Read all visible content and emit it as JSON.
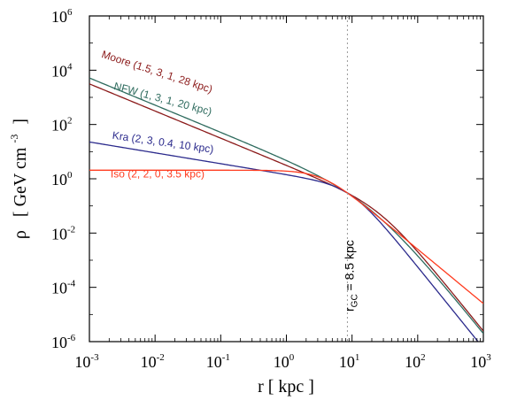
{
  "chart_data": {
    "type": "line",
    "xscale": "log",
    "yscale": "log",
    "xlim": [
      0.001,
      1000
    ],
    "ylim": [
      1e-06,
      1000000
    ],
    "xticks": [
      {
        "value": 0.001,
        "base": "10",
        "exp": "-3"
      },
      {
        "value": 0.01,
        "base": "10",
        "exp": "-2"
      },
      {
        "value": 0.1,
        "base": "10",
        "exp": "-1"
      },
      {
        "value": 1,
        "base": "10",
        "exp": "0"
      },
      {
        "value": 10,
        "base": "10",
        "exp": "1"
      },
      {
        "value": 100,
        "base": "10",
        "exp": "2"
      },
      {
        "value": 1000,
        "base": "10",
        "exp": "3"
      }
    ],
    "yticks": [
      {
        "value": 1e-06,
        "base": "10",
        "exp": "-6"
      },
      {
        "value": 0.0001,
        "base": "10",
        "exp": "-4"
      },
      {
        "value": 0.01,
        "base": "10",
        "exp": "-2"
      },
      {
        "value": 1,
        "base": "10",
        "exp": "0"
      },
      {
        "value": 100,
        "base": "10",
        "exp": "2"
      },
      {
        "value": 10000,
        "base": "10",
        "exp": "4"
      },
      {
        "value": 1000000,
        "base": "10",
        "exp": "6"
      }
    ],
    "xlabel": "r [ kpc ]",
    "ylabel": {
      "symbol": "ρ",
      "unit": "[ GeV cm",
      "exp": "-3",
      "close": "]"
    },
    "reference_line": {
      "x": 8.5,
      "label_main": "r",
      "label_sub": "GC",
      "label_rest": " = 8.5 kpc"
    },
    "grid": false,
    "series": [
      {
        "name": "Moore (1.5, 3, 1, 28 kpc)",
        "alpha": 1.5,
        "beta": 3,
        "gamma": 1,
        "rs": 28,
        "color": "#8b1a1a",
        "label_at": {
          "x": 0.0015,
          "y": 30000
        },
        "label_rotate": 18
      },
      {
        "name": "NFW (1, 3, 1, 20 kpc)",
        "alpha": 1,
        "beta": 3,
        "gamma": 1,
        "rs": 20,
        "color": "#2e6b5e",
        "label_at": {
          "x": 0.0023,
          "y": 2000
        },
        "label_rotate": 15
      },
      {
        "name": "Kra (2, 3, 0.4, 10 kpc)",
        "alpha": 2,
        "beta": 3,
        "gamma": 0.4,
        "rs": 10,
        "color": "#2b2a8c",
        "label_at": {
          "x": 0.0022,
          "y": 30
        },
        "label_rotate": 8
      },
      {
        "name": "Iso (2, 2, 0, 3.5 kpc)",
        "alpha": 2,
        "beta": 2,
        "gamma": 0,
        "rs": 3.5,
        "color": "#ff3b1f",
        "label_at": {
          "x": 0.0021,
          "y": 1.1
        },
        "label_rotate": 0
      }
    ],
    "normalization": {
      "r0": 8.5,
      "rho0": 0.3
    }
  }
}
